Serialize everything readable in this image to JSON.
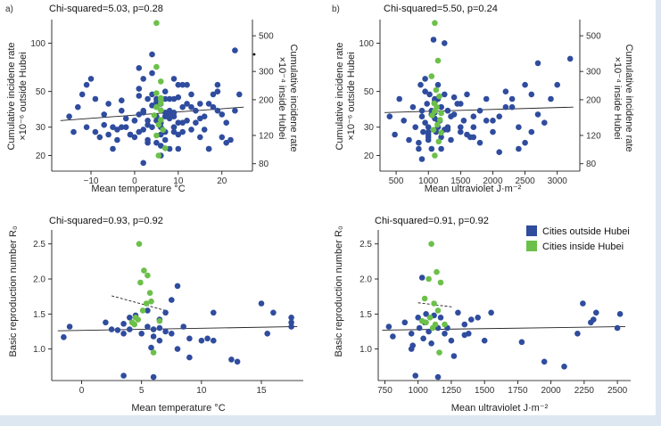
{
  "colors": {
    "outside": "#2f4c9e",
    "inside": "#6cc04a",
    "frame_bg": "#dde7f1"
  },
  "legend": {
    "outside_label": "Cities outside Hubei",
    "inside_label": "Cities inside Hubei"
  },
  "chart_data": [
    {
      "id": "a",
      "panel_label": "a)",
      "type": "scatter",
      "stat_text": "Chi-squared=5.03, p=0.28",
      "xlabel": "Mean temperature °C",
      "ylabel_left": [
        "Cumulative incidene rate",
        "×10⁻⁶ outside Hubei"
      ],
      "ylabel_right": [
        "Cumulative incidene rate",
        "×10⁻⁴ inside Hubei"
      ],
      "xlim": [
        -19,
        27
      ],
      "ylim_log": [
        16,
        140
      ],
      "right_ylim_log": [
        72,
        630
      ],
      "x_ticks": [
        -10,
        0,
        10,
        20
      ],
      "y_ticks": [
        20,
        30,
        50,
        100
      ],
      "right_y_ticks": [
        80,
        120,
        200,
        300,
        500
      ],
      "trend": [
        [
          -17,
          33
        ],
        [
          25,
          40
        ]
      ],
      "series": [
        {
          "name": "Cities outside Hubei",
          "x": [
            -15,
            -13,
            -11,
            -10,
            -9,
            -12,
            -14,
            -8,
            -7,
            -6,
            -5,
            -4,
            -3,
            -2,
            -1,
            0,
            1,
            2,
            3,
            4,
            5,
            6,
            7,
            8,
            9,
            10,
            11,
            12,
            13,
            14,
            15,
            16,
            17,
            18,
            19,
            20,
            21,
            22,
            23,
            24,
            -11,
            -9,
            -7,
            -5,
            -3,
            -1,
            1,
            2,
            3,
            4,
            5,
            6,
            6,
            7,
            7,
            8,
            8,
            9,
            9,
            10,
            11,
            12,
            14,
            16,
            18,
            20,
            2,
            4,
            6,
            8,
            10,
            1,
            3,
            5,
            7,
            9,
            0,
            2,
            4,
            6,
            8,
            10,
            12,
            -2,
            -4,
            -6,
            3,
            5,
            7,
            9,
            11,
            13,
            15,
            17,
            19,
            21,
            1,
            5,
            9,
            13,
            17,
            -3,
            1,
            3,
            5,
            7,
            9,
            11,
            15,
            19,
            23,
            0,
            2,
            4,
            6,
            8,
            10
          ],
          "y": [
            35,
            40,
            30,
            60,
            45,
            48,
            28,
            26,
            31,
            42,
            22,
            25,
            38,
            30,
            27,
            33,
            70,
            60,
            45,
            85,
            40,
            30,
            25,
            45,
            35,
            55,
            28,
            33,
            48,
            38,
            42,
            29,
            22,
            40,
            55,
            36,
            32,
            25,
            90,
            48,
            55,
            28,
            36,
            30,
            44,
            27,
            52,
            37,
            24,
            65,
            35,
            32,
            20,
            28,
            50,
            38,
            22,
            30,
            45,
            27,
            40,
            55,
            32,
            35,
            48,
            26,
            18,
            30,
            42,
            35,
            22,
            28,
            33,
            45,
            37,
            30,
            26,
            38,
            48,
            27,
            36,
            32,
            42,
            34,
            29,
            27,
            31,
            24,
            45,
            37,
            55,
            29,
            34,
            42,
            38,
            24,
            36,
            33,
            60,
            40,
            22,
            30,
            47,
            25,
            43,
            35,
            28,
            32,
            26,
            50,
            38,
            33,
            29,
            41,
            23,
            34,
            46
          ]
        },
        {
          "name": "Cities inside Hubei",
          "x": [
            5,
            5,
            6,
            5,
            6,
            6,
            5,
            6,
            4.5,
            6,
            5.5,
            6.5,
            5,
            7,
            5.5,
            6
          ],
          "y": [
            600,
            320,
            260,
            220,
            205,
            190,
            180,
            172,
            160,
            150,
            140,
            130,
            120,
            100,
            90,
            200
          ]
        }
      ]
    },
    {
      "id": "b",
      "panel_label": "b)",
      "type": "scatter",
      "stat_text": "Chi-squared=5.50, p=0.24",
      "xlabel": "Mean ultraviolet J·m⁻²",
      "ylabel_left": [
        "Cumulative incidene rate",
        "×10⁻⁶ outside Hubei"
      ],
      "ylabel_right": [
        "Cumulative incidene rate",
        "×10⁻⁴ inside Hubei"
      ],
      "xlim": [
        250,
        3350
      ],
      "ylim_log": [
        16,
        140
      ],
      "right_ylim_log": [
        72,
        630
      ],
      "x_ticks": [
        500,
        1000,
        1500,
        2000,
        2500,
        3000
      ],
      "y_ticks": [
        20,
        30,
        50,
        100
      ],
      "right_y_ticks": [
        80,
        120,
        200,
        300,
        500
      ],
      "trend": [
        [
          320,
          37
        ],
        [
          3250,
          40
        ]
      ],
      "series": [
        {
          "name": "Cities outside Hubei",
          "x": [
            400,
            480,
            550,
            620,
            700,
            760,
            800,
            850,
            880,
            900,
            920,
            950,
            980,
            1000,
            1020,
            1050,
            1080,
            1100,
            1120,
            1150,
            1180,
            1200,
            1250,
            1300,
            1350,
            1400,
            1450,
            1500,
            1550,
            1600,
            1650,
            1700,
            1800,
            1900,
            2000,
            2100,
            2200,
            2300,
            2400,
            2500,
            2600,
            2700,
            2800,
            2900,
            3000,
            3200,
            850,
            900,
            950,
            1000,
            1050,
            1100,
            1150,
            1200,
            1250,
            1300,
            950,
            1000,
            1050,
            1100,
            1150,
            1200,
            1000,
            1100,
            1200,
            1300,
            1400,
            1500,
            1600,
            1700,
            1800,
            2000,
            2200,
            2400,
            2600,
            900,
            1100,
            1300,
            1500,
            1700,
            1900,
            2100,
            2300,
            2500,
            2700,
            1000,
            1050,
            1150,
            1250,
            1350
          ],
          "y": [
            35,
            27,
            45,
            33,
            25,
            40,
            30,
            22,
            55,
            38,
            28,
            32,
            42,
            25,
            48,
            36,
            105,
            45,
            28,
            55,
            33,
            40,
            100,
            30,
            25,
            36,
            42,
            28,
            33,
            48,
            26,
            30,
            38,
            45,
            28,
            35,
            50,
            40,
            30,
            55,
            48,
            75,
            32,
            45,
            55,
            80,
            24,
            35,
            60,
            30,
            22,
            43,
            33,
            26,
            48,
            38,
            50,
            28,
            36,
            44,
            30,
            40,
            26,
            34,
            22,
            38,
            46,
            30,
            27,
            35,
            24,
            33,
            40,
            22,
            28,
            19,
            37,
            29,
            42,
            26,
            33,
            21,
            45,
            24,
            36,
            27,
            38,
            45,
            29,
            35
          ]
        },
        {
          "name": "Cities inside Hubei",
          "x": [
            1100,
            1150,
            1050,
            1120,
            1170,
            1090,
            1130,
            1100,
            1060,
            1180,
            1140,
            1080,
            1200,
            1160,
            1100,
            1200
          ],
          "y": [
            600,
            350,
            280,
            230,
            210,
            190,
            180,
            170,
            160,
            150,
            140,
            130,
            125,
            110,
            90,
            165
          ]
        }
      ]
    },
    {
      "id": "c",
      "type": "scatter",
      "stat_text": "Chi-squared=0.93, p=0.92",
      "xlabel": "Mean temperature °C",
      "ylabel": "Basic reproduction number R₀",
      "xlim": [
        -2.5,
        18.5
      ],
      "ylim": [
        0.55,
        2.7
      ],
      "x_ticks": [
        0,
        5,
        10,
        15
      ],
      "y_ticks": [
        1.0,
        1.5,
        2.0,
        2.5
      ],
      "trend": [
        [
          -2,
          1.26
        ],
        [
          18,
          1.32
        ]
      ],
      "dashed": [
        [
          2.5,
          1.76
        ],
        [
          7,
          1.55
        ]
      ],
      "series": [
        {
          "name": "Cities outside Hubei",
          "x": [
            -1.5,
            -1,
            2,
            2.5,
            3,
            3.5,
            3.5,
            4,
            4,
            4.5,
            5,
            5.5,
            5.5,
            6,
            6,
            6,
            6.5,
            6.5,
            7,
            7,
            7.5,
            7.5,
            8,
            8,
            8.5,
            9,
            10,
            10.5,
            11,
            11,
            12.5,
            13,
            15,
            15.5,
            16,
            17.5,
            17.5,
            17.5,
            3.5,
            6.5,
            9,
            5.8
          ],
          "y": [
            1.17,
            1.32,
            1.38,
            1.28,
            1.27,
            1.36,
            0.62,
            1.45,
            1.28,
            1.48,
            1.22,
            1.32,
            1.55,
            1.28,
            1.18,
            0.6,
            1.42,
            1.12,
            1.52,
            1.25,
            1.22,
            1.7,
            1.9,
            1.0,
            1.32,
            0.88,
            1.12,
            1.15,
            1.12,
            1.52,
            0.85,
            0.82,
            1.65,
            1.22,
            1.52,
            1.45,
            1.38,
            1.32,
            1.22,
            1.3,
            1.15,
            1.02
          ]
        },
        {
          "name": "Cities inside Hubei",
          "x": [
            4.8,
            5.2,
            5.5,
            4.9,
            5.7,
            5.4,
            5.8,
            5.1,
            4.5,
            4.7,
            4.2,
            6.5,
            6,
            4.4
          ],
          "y": [
            2.5,
            2.12,
            2.05,
            1.95,
            1.8,
            1.65,
            1.68,
            1.55,
            1.45,
            1.42,
            1.38,
            1.4,
            0.95,
            1.35
          ]
        }
      ]
    },
    {
      "id": "d",
      "type": "scatter",
      "stat_text": "Chi-squared=0.91, p=0.92",
      "xlabel": "Mean ultraviolet J·m⁻²",
      "ylabel": "Basic reproduction number R₀",
      "xlim": [
        700,
        2600
      ],
      "ylim": [
        0.55,
        2.7
      ],
      "x_ticks": [
        750,
        1000,
        1250,
        1500,
        1750,
        2000,
        2250,
        2500
      ],
      "y_ticks": [
        1.0,
        1.5,
        2.0,
        2.5
      ],
      "trend": [
        [
          730,
          1.27
        ],
        [
          2560,
          1.32
        ]
      ],
      "dashed": [
        [
          1000,
          1.66
        ],
        [
          1260,
          1.6
        ]
      ],
      "series": [
        {
          "name": "Cities outside Hubei",
          "x": [
            780,
            810,
            900,
            950,
            960,
            980,
            1000,
            1010,
            1030,
            1050,
            1060,
            1080,
            1100,
            1120,
            1130,
            1150,
            1170,
            1200,
            1220,
            1250,
            1270,
            1300,
            1350,
            1380,
            1400,
            1450,
            1500,
            1550,
            1780,
            1950,
            2100,
            2200,
            2240,
            2300,
            2320,
            2340,
            2500,
            2520,
            950,
            1150,
            1350,
            1040
          ],
          "y": [
            1.32,
            1.18,
            1.38,
            1.22,
            1.05,
            0.62,
            1.45,
            1.3,
            2.02,
            1.38,
            1.5,
            1.25,
            1.08,
            1.48,
            1.32,
            0.6,
            1.45,
            1.22,
            1.3,
            1.12,
            0.9,
            1.52,
            1.35,
            1.22,
            1.42,
            1.45,
            1.12,
            1.52,
            1.1,
            0.82,
            0.75,
            1.22,
            1.65,
            1.38,
            1.42,
            1.52,
            1.3,
            1.5,
            1.0,
            1.3,
            1.2,
            1.15
          ]
        },
        {
          "name": "Cities inside Hubei",
          "x": [
            1100,
            1140,
            1080,
            1170,
            1050,
            1120,
            1150,
            1090,
            1030,
            1060,
            1130,
            1200,
            1160,
            1110
          ],
          "y": [
            2.5,
            2.1,
            2.0,
            1.95,
            1.72,
            1.65,
            1.55,
            1.45,
            1.4,
            1.38,
            1.35,
            1.35,
            0.95,
            1.3
          ]
        }
      ]
    }
  ]
}
